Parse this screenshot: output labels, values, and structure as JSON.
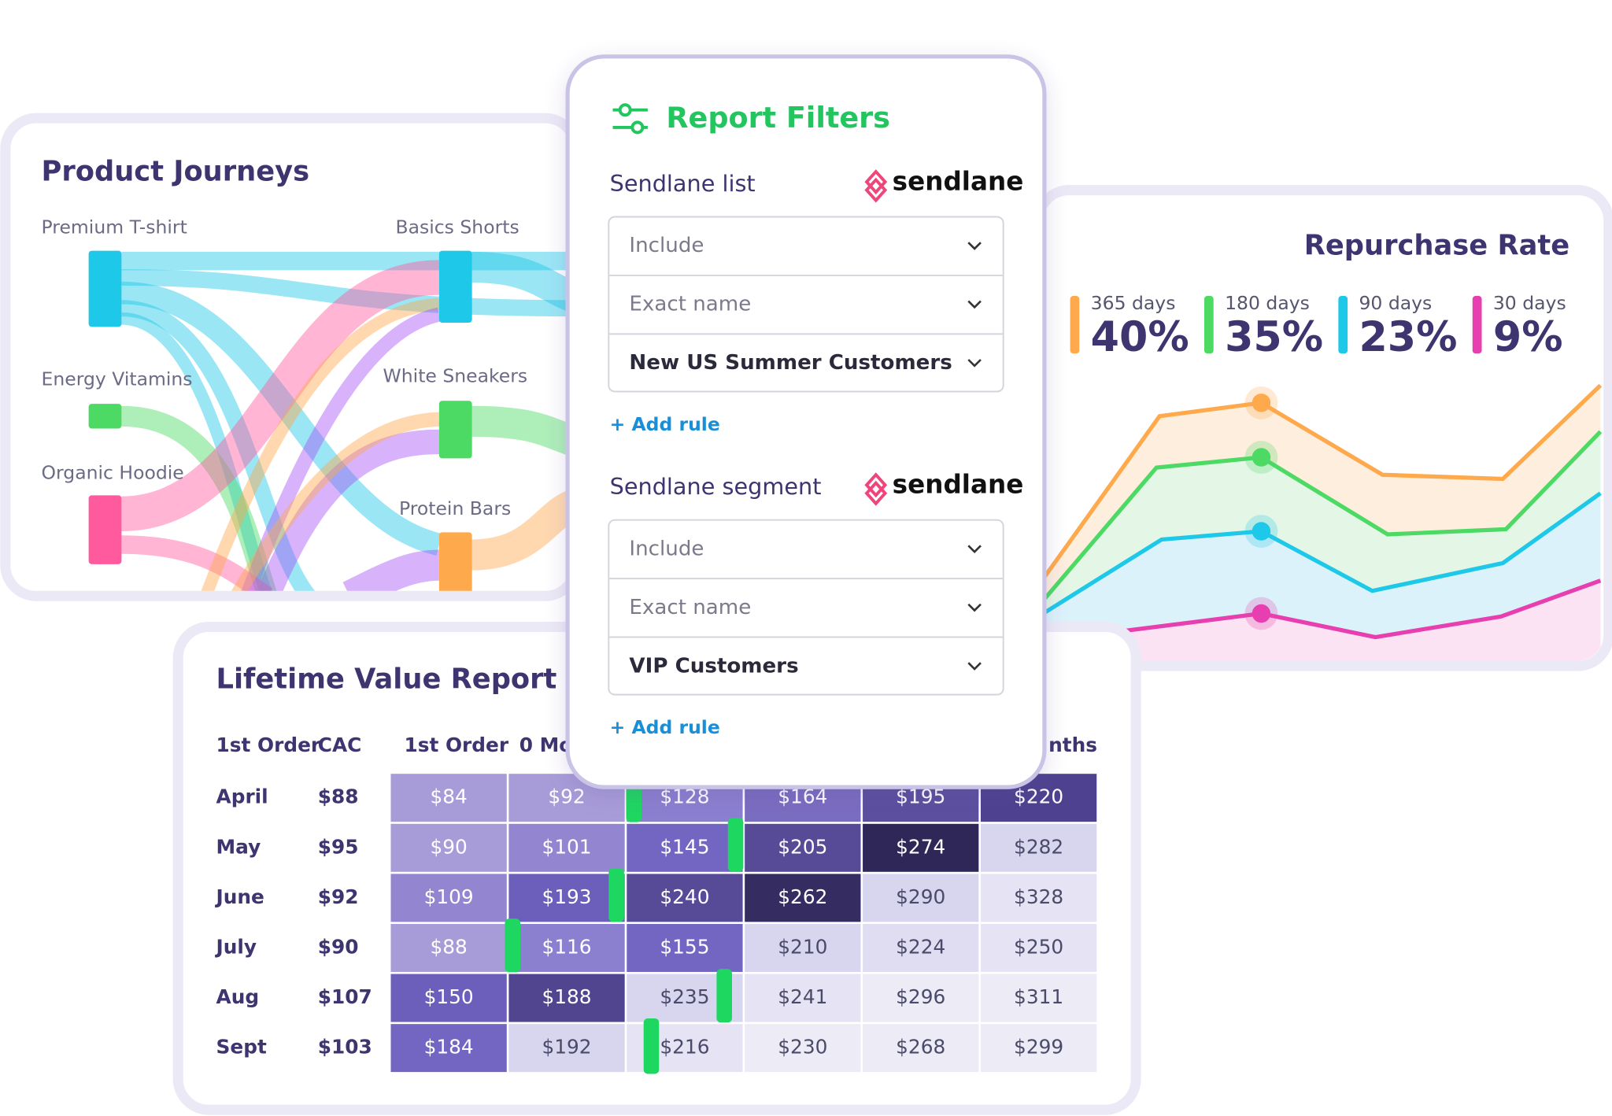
{
  "journeys": {
    "title": "Product Journeys",
    "nodes": [
      {
        "label": "Premium T-shirt"
      },
      {
        "label": "Energy Vitamins"
      },
      {
        "label": "Organic Hoodie"
      },
      {
        "label": "Basics Shorts"
      },
      {
        "label": "White Sneakers"
      },
      {
        "label": "Protein Bars"
      }
    ]
  },
  "repurchase": {
    "title": "Repurchase Rate",
    "items": [
      {
        "label": "365 days",
        "value": "40%",
        "color": "#ffa94d"
      },
      {
        "label": "180 days",
        "value": "35%",
        "color": "#4cd964"
      },
      {
        "label": "90 days",
        "value": "23%",
        "color": "#1ec8e8"
      },
      {
        "label": "30 days",
        "value": "9%",
        "color": "#e83fb0"
      }
    ]
  },
  "filters": {
    "title": "Report Filters",
    "sections": [
      {
        "label": "Sendlane list",
        "brand": "sendlane",
        "fields": [
          "Include",
          "Exact name",
          "New US Summer Customers"
        ],
        "add": "+ Add rule"
      },
      {
        "label": "Sendlane segment",
        "brand": "sendlane",
        "fields": [
          "Include",
          "Exact name",
          "VIP Customers"
        ],
        "add": "+ Add rule"
      }
    ]
  },
  "ltv": {
    "title": "Lifetime Value Report",
    "headers": [
      "1st Order",
      "CAC",
      "1st Order",
      "0 Mo",
      "nths"
    ],
    "rows": [
      {
        "month": "April",
        "cac": "$88",
        "cells": [
          "$84",
          "$92",
          "$128",
          "$164",
          "$195",
          "$220"
        ],
        "colors": [
          "#a89cd8",
          "#a89cd8",
          "#8b7fcf",
          "#7a6cc0",
          "#5c4f9e",
          "#4e4290"
        ]
      },
      {
        "month": "May",
        "cac": "$95",
        "cells": [
          "$90",
          "$101",
          "$145",
          "$205",
          "$274",
          "$282"
        ],
        "colors": [
          "#a89cd8",
          "#9385cf",
          "#7266c2",
          "#574a96",
          "#2f2757",
          "#d8d5ef"
        ]
      },
      {
        "month": "June",
        "cac": "$92",
        "cells": [
          "$109",
          "$193",
          "$240",
          "$262",
          "$290",
          "$328"
        ],
        "colors": [
          "#9385cf",
          "#6b5fbb",
          "#574a96",
          "#352c62",
          "#d8d5ef",
          "#e6e4f4"
        ]
      },
      {
        "month": "July",
        "cac": "$90",
        "cells": [
          "$88",
          "$116",
          "$155",
          "$210",
          "$224",
          "$250"
        ],
        "colors": [
          "#a89cd8",
          "#8b7fcf",
          "#7266c2",
          "#d8d5ef",
          "#e0ddf2",
          "#e6e4f4"
        ]
      },
      {
        "month": "Aug",
        "cac": "$107",
        "cells": [
          "$150",
          "$188",
          "$235",
          "$241",
          "$296",
          "$311"
        ],
        "colors": [
          "#6b5fbb",
          "#514590",
          "#d8d5ef",
          "#e6e4f4",
          "#ecebf6",
          "#ecebf6"
        ]
      },
      {
        "month": "Sept",
        "cac": "$103",
        "cells": [
          "$184",
          "$192",
          "$216",
          "$230",
          "$268",
          "$299"
        ],
        "colors": [
          "#7266c2",
          "#d8d5ef",
          "#e6e4f4",
          "#ecebf6",
          "#ecebf6",
          "#ecebf6"
        ]
      }
    ]
  }
}
